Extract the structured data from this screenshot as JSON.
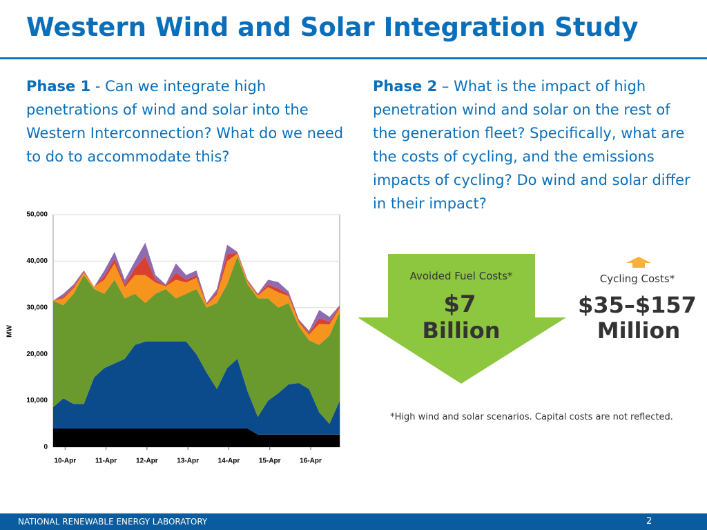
{
  "title": "Western Wind and Solar Integration Study",
  "phase1": {
    "label": "Phase 1",
    "text": "- Can we integrate high penetrations of wind and solar into the Western Interconnection? What do we need to do to accommodate this?"
  },
  "phase2": {
    "label": "Phase 2",
    "text": "– What is the impact of high penetration wind and solar on the rest of the generation fleet?  Specifically, what are the costs of cycling, and the emissions impacts of cycling? Do wind and solar differ in their impact?"
  },
  "avoided": {
    "label": "Avoided Fuel Costs*",
    "amount": "$7",
    "unit": "Billion"
  },
  "cycling": {
    "label": "Cycling Costs*",
    "amount": "$35–$157",
    "unit": "Million"
  },
  "footnote": "*High wind and solar scenarios. Capital costs are not reflected.",
  "footer": {
    "org": "NATIONAL RENEWABLE ENERGY LABORATORY",
    "page": "2"
  },
  "chart_data": {
    "type": "stacked-area",
    "ylabel": "MW",
    "x": [
      0,
      6,
      12,
      18,
      24,
      30,
      36,
      42,
      48,
      54,
      60,
      66,
      72,
      78,
      84,
      90,
      96,
      102,
      108,
      114,
      120,
      126,
      132,
      138,
      144,
      150,
      156,
      162,
      168
    ],
    "xlim": [
      0,
      168
    ],
    "xticks": [
      {
        "value": 7,
        "label": "10-Apr"
      },
      {
        "value": 31,
        "label": "11-Apr"
      },
      {
        "value": 55,
        "label": "12-Apr"
      },
      {
        "value": 79,
        "label": "13-Apr"
      },
      {
        "value": 103,
        "label": "14-Apr"
      },
      {
        "value": 127,
        "label": "15-Apr"
      },
      {
        "value": 151,
        "label": "16-Apr"
      }
    ],
    "ylim": [
      0,
      50000
    ],
    "yticks": [
      0,
      {
        "value": 10000,
        "label": "10,000"
      },
      {
        "value": 20000,
        "label": "20,000"
      },
      {
        "value": 30000,
        "label": "30,000"
      },
      {
        "value": 40000,
        "label": "40,000"
      },
      {
        "value": 50000,
        "label": "50,000"
      }
    ],
    "grid": true,
    "series": [
      {
        "color": "#000000",
        "values": [
          4000,
          4000,
          4000,
          4000,
          4000,
          4000,
          4000,
          4000,
          4000,
          4000,
          4000,
          4000,
          4000,
          4000,
          4000,
          4000,
          4000,
          4000,
          4000,
          4000,
          2700,
          2700,
          2700,
          2700,
          2700,
          2700,
          2700,
          2700,
          2700
        ]
      },
      {
        "color": "#0b4a8b",
        "values": [
          4600,
          6500,
          5300,
          5300,
          11000,
          13000,
          14000,
          15000,
          18000,
          18700,
          18700,
          18700,
          18700,
          18700,
          16000,
          12000,
          8500,
          13000,
          15000,
          8000,
          3800,
          7300,
          8900,
          10800,
          11100,
          9800,
          4800,
          2300,
          7300
        ]
      },
      {
        "color": "#6a9a2e",
        "values": [
          22900,
          20000,
          23700,
          27700,
          19000,
          16000,
          18000,
          13000,
          11000,
          8300,
          10300,
          11300,
          9300,
          10300,
          14000,
          14000,
          18500,
          18000,
          22000,
          23000,
          25500,
          22000,
          18400,
          17500,
          12200,
          10500,
          14500,
          19000,
          19000
        ]
      },
      {
        "color": "#f7941d",
        "values": [
          0,
          1500,
          1200,
          600,
          500,
          3000,
          3500,
          2400,
          4000,
          6000,
          2400,
          600,
          4000,
          2400,
          2400,
          600,
          1800,
          5000,
          600,
          600,
          600,
          2400,
          3300,
          1500,
          900,
          1200,
          4500,
          2400,
          900
        ]
      },
      {
        "color": "#d8412f",
        "values": [
          0,
          400,
          300,
          200,
          0,
          800,
          1000,
          600,
          1500,
          4000,
          600,
          200,
          1500,
          600,
          600,
          200,
          500,
          1500,
          200,
          200,
          200,
          600,
          800,
          400,
          300,
          400,
          1200,
          600,
          300
        ]
      },
      {
        "color": "#8e6bb0",
        "values": [
          0,
          600,
          500,
          200,
          0,
          1200,
          1500,
          1000,
          1500,
          3000,
          1000,
          200,
          2000,
          1000,
          1000,
          200,
          700,
          2000,
          200,
          200,
          200,
          1000,
          1400,
          600,
          300,
          400,
          1800,
          1000,
          300
        ]
      }
    ]
  }
}
